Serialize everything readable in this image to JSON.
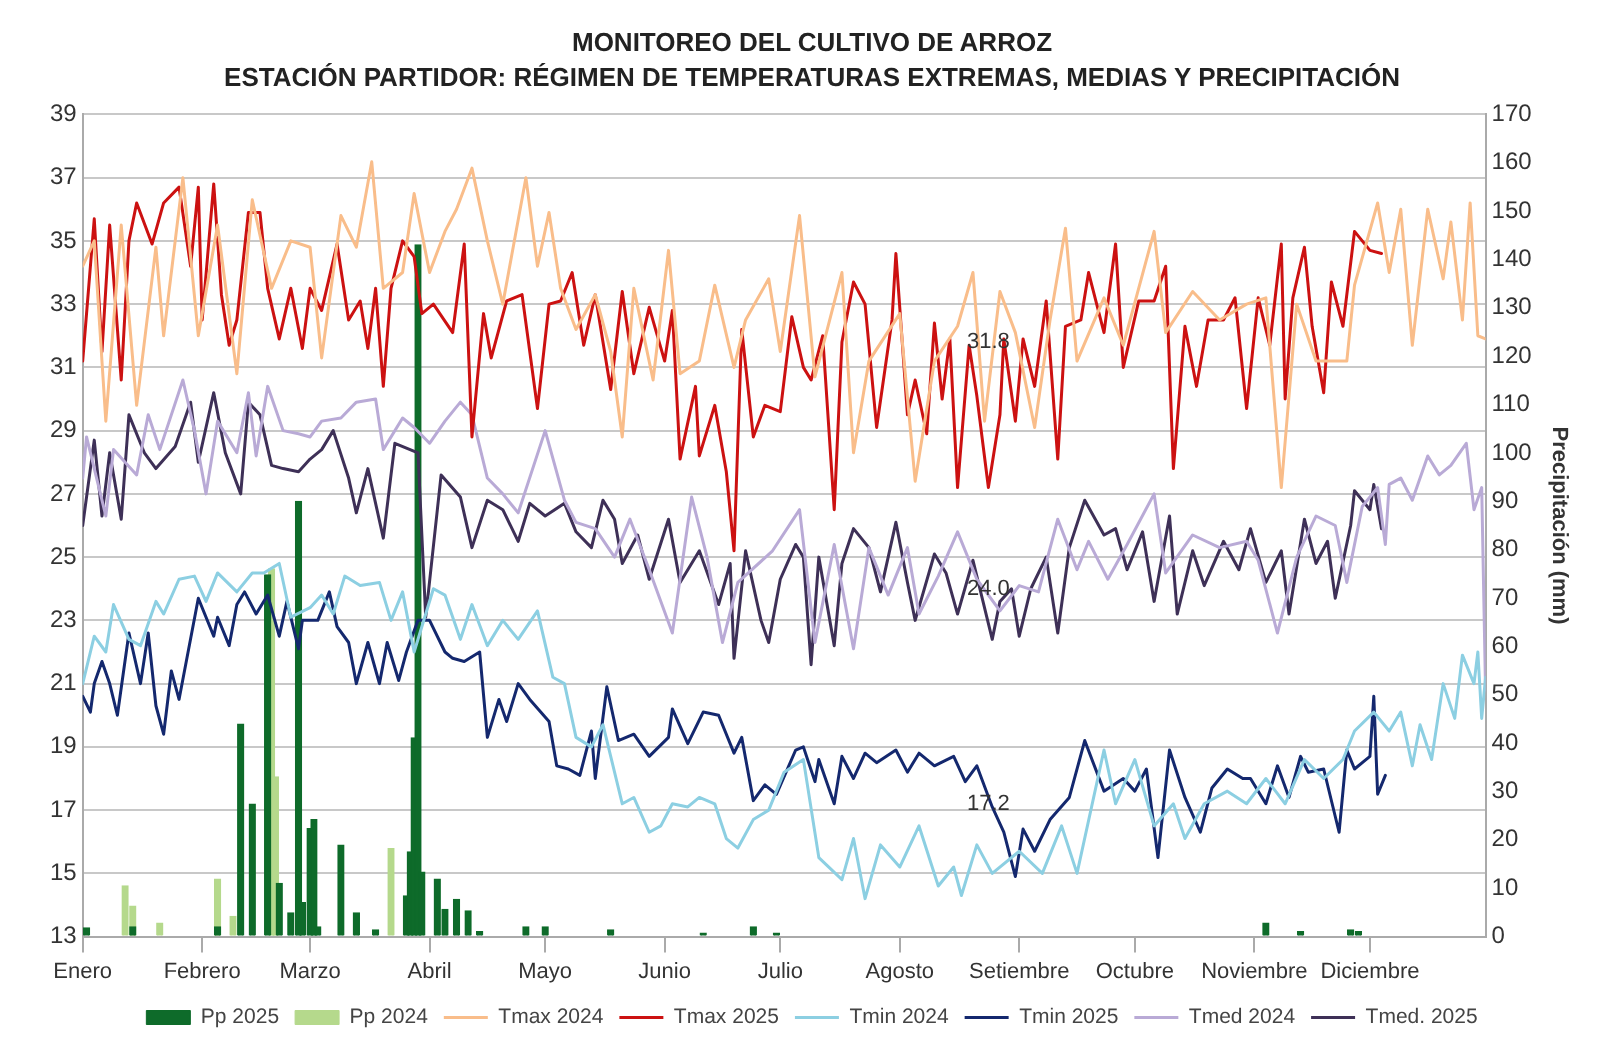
{
  "chart_data": {
    "type": "line",
    "title": "MONITOREO DEL CULTIVO DE ARROZ",
    "subtitle": "ESTACIÓN PARTIDOR: RÉGIMEN DE TEMPERATURAS EXTREMAS, MEDIAS Y PRECIPITACIÓN",
    "y2label": "Precipitación (mm)",
    "xlim": [
      "--01-01",
      "--12-31"
    ],
    "xticks": [
      {
        "value": "--01-01",
        "label": "Enero"
      },
      {
        "value": "--02-01",
        "label": "Febrero"
      },
      {
        "value": "--03-01",
        "label": "Marzo"
      },
      {
        "value": "--04-01",
        "label": "Abril"
      },
      {
        "value": "--05-01",
        "label": "Mayo"
      },
      {
        "value": "--06-01",
        "label": "Junio"
      },
      {
        "value": "--07-01",
        "label": "Julio"
      },
      {
        "value": "--08-01",
        "label": "Agosto"
      },
      {
        "value": "--09-01",
        "label": "Setiembre"
      },
      {
        "value": "--10-01",
        "label": "Octubre"
      },
      {
        "value": "--11-01",
        "label": "Noviembre"
      },
      {
        "value": "--12-01",
        "label": "Diciembre"
      }
    ],
    "ylim": [
      13,
      39
    ],
    "yticks": [
      13,
      15,
      17,
      19,
      21,
      23,
      25,
      27,
      29,
      31,
      33,
      35,
      37,
      39
    ],
    "y2lim": [
      0,
      170
    ],
    "y2ticks": [
      0,
      10,
      20,
      30,
      40,
      50,
      60,
      70,
      80,
      90,
      100,
      110,
      120,
      130,
      140,
      150,
      160,
      170
    ],
    "grid": "y",
    "legend": "bottom",
    "marker": "none",
    "line_style": "solid",
    "annotations": [
      {
        "text": "31.8",
        "x": "--08-24",
        "y": 31.8
      },
      {
        "text": "24.0",
        "x": "--08-24",
        "y": 24.0
      },
      {
        "text": "17.2",
        "x": "--08-24",
        "y": 17.2
      }
    ],
    "series": [
      {
        "name": "Pp 2025",
        "type": "bar",
        "axis": "y2",
        "color": "#0e6b2a",
        "x": [
          "--01-02",
          "--01-14",
          "--02-05",
          "--02-11",
          "--02-14",
          "--02-18",
          "--02-21",
          "--02-24",
          "--02-26",
          "--02-27",
          "--03-01",
          "--03-02",
          "--03-03",
          "--03-09",
          "--03-13",
          "--03-18",
          "--03-26",
          "--03-27",
          "--03-28",
          "--03-29",
          "--03-30",
          "--04-03",
          "--04-05",
          "--04-08",
          "--04-11",
          "--04-14",
          "--04-26",
          "--05-01",
          "--05-18",
          "--06-11",
          "--06-24",
          "--06-30",
          "--11-04",
          "--11-13",
          "--11-26",
          "--11-28"
        ],
        "values": [
          1.8,
          2,
          2,
          43.9,
          27.4,
          74.8,
          11,
          4.9,
          90,
          7,
          22.3,
          24.2,
          2,
          18.9,
          4.9,
          1.4,
          8.4,
          17.5,
          41.1,
          143,
          13.3,
          11.9,
          5.6,
          7.7,
          5.3,
          1,
          2,
          2,
          1.4,
          0.7,
          2,
          0.7,
          2.8,
          1,
          1.4,
          1
        ]
      },
      {
        "name": "Pp 2024",
        "type": "bar",
        "axis": "y2",
        "color": "#b5d98c",
        "x": [
          "--01-12",
          "--01-14",
          "--01-21",
          "--02-05",
          "--02-09",
          "--02-19",
          "--02-20",
          "--03-22"
        ],
        "values": [
          10.5,
          6.3,
          2.8,
          11.9,
          4.2,
          76,
          33,
          18.2
        ]
      },
      {
        "name": "Tmax 2024",
        "axis": "y",
        "color": "#f9bd8a",
        "x": [
          "--01-01",
          "--01-04",
          "--01-07",
          "--01-11",
          "--01-15",
          "--01-20",
          "--01-22",
          "--01-27",
          "--01-31",
          "--02-05",
          "--02-10",
          "--02-14",
          "--02-19",
          "--02-24",
          "--03-01",
          "--03-04",
          "--03-09",
          "--03-13",
          "--03-17",
          "--03-20",
          "--03-25",
          "--03-28",
          "--04-01",
          "--04-05",
          "--04-08",
          "--04-12",
          "--04-16",
          "--04-20",
          "--04-26",
          "--04-29",
          "--05-02",
          "--05-05",
          "--05-09",
          "--05-14",
          "--05-18",
          "--05-21",
          "--05-24",
          "--05-29",
          "--06-02",
          "--06-05",
          "--06-10",
          "--06-14",
          "--06-19",
          "--06-22",
          "--06-28",
          "--07-01",
          "--07-06",
          "--07-10",
          "--07-17",
          "--07-20",
          "--07-24",
          "--08-01",
          "--08-05",
          "--08-10",
          "--08-16",
          "--08-20",
          "--08-23",
          "--08-27",
          "--08-31",
          "--09-05",
          "--09-09",
          "--09-13",
          "--09-16",
          "--09-23",
          "--09-28",
          "--10-06",
          "--10-09",
          "--10-16",
          "--10-23",
          "--10-30",
          "--11-04",
          "--11-08",
          "--11-12",
          "--11-17",
          "--11-25",
          "--11-27",
          "--12-03",
          "--12-06",
          "--12-09",
          "--12-12",
          "--12-16",
          "--12-20",
          "--12-22",
          "--12-25",
          "--12-27",
          "--12-29",
          "--12-31"
        ],
        "values": [
          34.2,
          35,
          29.3,
          35.5,
          29.8,
          34.8,
          32,
          37,
          32,
          35.5,
          30.8,
          36.3,
          33.5,
          35,
          34.8,
          31.3,
          35.8,
          34.8,
          37.5,
          33.5,
          34,
          36.5,
          34,
          35.3,
          36,
          37.3,
          35,
          33,
          37,
          34.2,
          35.9,
          33.5,
          32.2,
          33.3,
          31.5,
          28.8,
          33.5,
          30.6,
          34.7,
          30.8,
          31.2,
          33.6,
          31,
          32.5,
          33.8,
          31.5,
          35.8,
          30.7,
          34,
          28.3,
          31.2,
          32.7,
          27.4,
          31.2,
          32.3,
          34,
          29.3,
          33.4,
          32.1,
          29.1,
          32.5,
          35.4,
          31.2,
          33.2,
          31.7,
          35.3,
          32.1,
          33.4,
          32.5,
          33,
          33.2,
          27.2,
          33,
          31.2,
          31.2,
          33.6,
          36.2,
          34,
          36,
          31.7,
          36,
          33.8,
          35.6,
          32.5,
          36.2,
          32,
          31.9
        ]
      },
      {
        "name": "Tmax 2025",
        "axis": "y",
        "color": "#cc1111",
        "x": [
          "--01-01",
          "--01-04",
          "--01-06",
          "--01-08",
          "--01-11",
          "--01-13",
          "--01-15",
          "--01-19",
          "--01-22",
          "--01-26",
          "--01-29",
          "--01-31",
          "--02-01",
          "--02-04",
          "--02-06",
          "--02-08",
          "--02-10",
          "--02-13",
          "--02-16",
          "--02-18",
          "--02-21",
          "--02-24",
          "--02-27",
          "--03-01",
          "--03-04",
          "--03-08",
          "--03-11",
          "--03-14",
          "--03-16",
          "--03-18",
          "--03-20",
          "--03-22",
          "--03-25",
          "--03-28",
          "--03-30",
          "--04-02",
          "--04-07",
          "--04-10",
          "--04-12",
          "--04-15",
          "--04-17",
          "--04-21",
          "--04-25",
          "--04-29",
          "--05-02",
          "--05-05",
          "--05-08",
          "--05-11",
          "--05-14",
          "--05-18",
          "--05-21",
          "--05-24",
          "--05-28",
          "--06-01",
          "--06-03",
          "--06-05",
          "--06-09",
          "--06-10",
          "--06-14",
          "--06-17",
          "--06-19",
          "--06-21",
          "--06-24",
          "--06-27",
          "--07-01",
          "--07-04",
          "--07-07",
          "--07-09",
          "--07-12",
          "--07-15",
          "--07-17",
          "--07-20",
          "--07-23",
          "--07-26",
          "--07-30",
          "--07-31",
          "--08-03",
          "--08-05",
          "--08-08",
          "--08-10",
          "--08-12",
          "--08-14",
          "--08-16",
          "--08-19",
          "--08-21",
          "--08-24",
          "--08-27",
          "--08-28",
          "--08-31",
          "--09-02",
          "--09-05",
          "--09-08",
          "--09-11",
          "--09-13",
          "--09-17",
          "--09-19",
          "--09-23",
          "--09-26",
          "--09-28",
          "--10-02",
          "--10-06",
          "--10-09",
          "--10-11",
          "--10-14",
          "--10-17",
          "--10-20",
          "--10-24",
          "--10-27",
          "--10-30",
          "--11-02",
          "--11-05",
          "--11-08",
          "--11-09",
          "--11-11",
          "--11-14",
          "--11-16",
          "--11-19",
          "--11-21",
          "--11-24",
          "--11-27",
          "--12-01",
          "--12-04"
        ],
        "values": [
          31.2,
          35.7,
          31.5,
          35.5,
          30.6,
          35,
          36.2,
          34.9,
          36.2,
          36.7,
          34.2,
          36.7,
          32.5,
          36.8,
          33.3,
          31.7,
          32.5,
          35.9,
          35.9,
          33.5,
          31.9,
          33.5,
          31.6,
          33.5,
          32.8,
          34.9,
          32.5,
          33.1,
          31.6,
          33.5,
          30.4,
          33.5,
          35,
          34.5,
          32.7,
          33,
          32.1,
          34.9,
          28.8,
          32.7,
          31.3,
          33.1,
          33.3,
          29.7,
          33,
          33.1,
          34,
          31.7,
          33.3,
          30.3,
          33.4,
          30.8,
          32.9,
          31.2,
          32.8,
          28.1,
          30.4,
          28.2,
          29.8,
          27.7,
          25.2,
          32.2,
          28.8,
          29.8,
          29.6,
          32.6,
          31,
          30.6,
          32,
          26.5,
          31.8,
          33.7,
          33,
          29.1,
          32.5,
          34.6,
          29.5,
          30.6,
          28.9,
          32.4,
          30,
          31.9,
          27.2,
          31.7,
          30.1,
          27.2,
          29.5,
          31.9,
          29.3,
          31.9,
          30.4,
          33.1,
          28.1,
          32.3,
          32.5,
          34,
          32.1,
          34.9,
          31,
          33.1,
          33.1,
          34.2,
          27.8,
          32.3,
          30.4,
          32.5,
          32.5,
          33.2,
          29.7,
          33.2,
          31.7,
          34.9,
          30,
          33.2,
          34.8,
          32.3,
          30.2,
          33.7,
          32.3,
          35.3,
          34.7,
          34.6
        ]
      },
      {
        "name": "Tmin 2024",
        "axis": "y",
        "color": "#8ccfe2",
        "x": [
          "--01-01",
          "--01-04",
          "--01-07",
          "--01-09",
          "--01-13",
          "--01-16",
          "--01-20",
          "--01-22",
          "--01-26",
          "--01-30",
          "--02-02",
          "--02-05",
          "--02-10",
          "--02-14",
          "--02-17",
          "--02-21",
          "--02-24",
          "--03-01",
          "--03-04",
          "--03-07",
          "--03-10",
          "--03-14",
          "--03-19",
          "--03-22",
          "--03-25",
          "--03-28",
          "--04-02",
          "--04-05",
          "--04-09",
          "--04-12",
          "--04-16",
          "--04-20",
          "--04-24",
          "--04-29",
          "--05-03",
          "--05-06",
          "--05-09",
          "--05-13",
          "--05-16",
          "--05-21",
          "--05-24",
          "--05-28",
          "--05-31",
          "--06-03",
          "--06-07",
          "--06-10",
          "--06-14",
          "--06-17",
          "--06-20",
          "--06-24",
          "--06-28",
          "--07-02",
          "--07-07",
          "--07-11",
          "--07-17",
          "--07-20",
          "--07-23",
          "--07-27",
          "--08-01",
          "--08-06",
          "--08-11",
          "--08-15",
          "--08-17",
          "--08-21",
          "--08-25",
          "--09-01",
          "--09-07",
          "--09-12",
          "--09-16",
          "--09-23",
          "--09-26",
          "--10-01",
          "--10-06",
          "--10-11",
          "--10-14",
          "--10-19",
          "--10-25",
          "--10-30",
          "--11-04",
          "--11-09",
          "--11-14",
          "--11-19",
          "--11-24",
          "--11-27",
          "--12-02",
          "--12-06",
          "--12-09",
          "--12-12",
          "--12-14",
          "--12-17",
          "--12-20",
          "--12-23",
          "--12-25",
          "--12-28",
          "--12-29",
          "--12-30",
          "--12-31"
        ],
        "values": [
          21,
          22.5,
          22,
          23.5,
          22.4,
          22.2,
          23.6,
          23.2,
          24.3,
          24.4,
          23.6,
          24.5,
          23.9,
          24.5,
          24.5,
          24.8,
          23.1,
          23.4,
          23.8,
          23.2,
          24.4,
          24.1,
          24.2,
          23,
          23.9,
          22,
          24,
          23.8,
          22.4,
          23.5,
          22.2,
          23,
          22.4,
          23.3,
          21.2,
          21,
          19.3,
          19,
          19.7,
          17.2,
          17.4,
          16.3,
          16.5,
          17.2,
          17.1,
          17.4,
          17.2,
          16.1,
          15.8,
          16.7,
          17,
          18.2,
          18.6,
          15.5,
          14.8,
          16.1,
          14.2,
          15.9,
          15.2,
          16.5,
          14.6,
          15.2,
          14.3,
          15.9,
          15,
          15.7,
          15,
          16.5,
          15,
          18.9,
          17.2,
          18.6,
          16.5,
          17.2,
          16.1,
          17.2,
          17.6,
          17.2,
          18,
          17.2,
          18.6,
          18,
          18.6,
          19.5,
          20.1,
          19.5,
          20.1,
          18.4,
          19.7,
          18.6,
          21,
          19.9,
          21.9,
          21,
          22,
          19.9,
          21.2
        ]
      },
      {
        "name": "Tmin 2025",
        "axis": "y",
        "color": "#14286e",
        "x": [
          "--01-01",
          "--01-03",
          "--01-04",
          "--01-06",
          "--01-08",
          "--01-10",
          "--01-13",
          "--01-16",
          "--01-18",
          "--01-20",
          "--01-22",
          "--01-24",
          "--01-26",
          "--01-31",
          "--02-04",
          "--02-05",
          "--02-08",
          "--02-10",
          "--02-12",
          "--02-15",
          "--02-18",
          "--02-21",
          "--02-23",
          "--02-26",
          "--02-27",
          "--03-03",
          "--03-06",
          "--03-08",
          "--03-11",
          "--03-13",
          "--03-16",
          "--03-19",
          "--03-21",
          "--03-24",
          "--03-26",
          "--03-29",
          "--04-01",
          "--04-05",
          "--04-07",
          "--04-10",
          "--04-14",
          "--04-16",
          "--04-19",
          "--04-21",
          "--04-24",
          "--04-27",
          "--05-02",
          "--05-04",
          "--05-07",
          "--05-10",
          "--05-13",
          "--05-14",
          "--05-17",
          "--05-20",
          "--05-24",
          "--05-28",
          "--06-02",
          "--06-03",
          "--06-07",
          "--06-11",
          "--06-15",
          "--06-19",
          "--06-21",
          "--06-24",
          "--06-27",
          "--06-30",
          "--07-05",
          "--07-07",
          "--07-10",
          "--07-11",
          "--07-15",
          "--07-17",
          "--07-20",
          "--07-23",
          "--07-26",
          "--07-31",
          "--08-03",
          "--08-06",
          "--08-10",
          "--08-15",
          "--08-18",
          "--08-21",
          "--08-25",
          "--08-28",
          "--08-31",
          "--09-02",
          "--09-05",
          "--09-09",
          "--09-14",
          "--09-18",
          "--09-23",
          "--09-28",
          "--10-01",
          "--10-04",
          "--10-07",
          "--10-10",
          "--10-14",
          "--10-18",
          "--10-21",
          "--10-25",
          "--10-29",
          "--10-31",
          "--11-04",
          "--11-07",
          "--11-10",
          "--11-13",
          "--11-15",
          "--11-19",
          "--11-23",
          "--11-25",
          "--11-27",
          "--12-01",
          "--12-02",
          "--12-03",
          "--12-05"
        ],
        "values": [
          20.6,
          20.1,
          21,
          21.7,
          21,
          20,
          22.6,
          21,
          22.6,
          20.3,
          19.4,
          21.4,
          20.5,
          23.7,
          22.5,
          23.1,
          22.2,
          23.5,
          23.9,
          23.2,
          23.8,
          22.5,
          23.6,
          22.1,
          23,
          23,
          23.9,
          22.8,
          22.3,
          21,
          22.3,
          21,
          22.3,
          21.1,
          22,
          23,
          23,
          22,
          21.8,
          21.7,
          22,
          19.3,
          20.5,
          19.8,
          21,
          20.5,
          19.8,
          18.4,
          18.3,
          18.1,
          19.5,
          18,
          20.9,
          19.2,
          19.4,
          18.7,
          19.3,
          20.2,
          19.1,
          20.1,
          20,
          18.8,
          19.3,
          17.3,
          17.8,
          17.5,
          18.9,
          19,
          17.9,
          18.6,
          17.2,
          18.7,
          18,
          18.8,
          18.5,
          18.9,
          18.2,
          18.8,
          18.4,
          18.7,
          17.9,
          18.4,
          17.1,
          16.3,
          14.9,
          16.4,
          15.7,
          16.7,
          17.4,
          19.2,
          17.6,
          18,
          17.6,
          18.3,
          15.5,
          18.9,
          17.4,
          16.3,
          17.7,
          18.3,
          18,
          18,
          17.2,
          18.4,
          17.4,
          18.7,
          18.2,
          18.3,
          16.3,
          18.9,
          18.3,
          18.7,
          20.6,
          17.5,
          18.1
        ]
      },
      {
        "name": "Tmed 2024",
        "axis": "y",
        "color": "#b9aad6",
        "x": [
          "--01-01",
          "--01-02",
          "--01-07",
          "--01-09",
          "--01-15",
          "--01-18",
          "--01-21",
          "--01-27",
          "--01-30",
          "--02-02",
          "--02-05",
          "--02-10",
          "--02-13",
          "--02-15",
          "--02-18",
          "--02-22",
          "--02-26",
          "--03-01",
          "--03-04",
          "--03-09",
          "--03-13",
          "--03-18",
          "--03-20",
          "--03-25",
          "--03-28",
          "--04-01",
          "--04-05",
          "--04-09",
          "--04-12",
          "--04-16",
          "--04-20",
          "--04-24",
          "--05-01",
          "--05-06",
          "--05-09",
          "--05-14",
          "--05-19",
          "--05-23",
          "--05-28",
          "--06-03",
          "--06-08",
          "--06-12",
          "--06-16",
          "--06-20",
          "--06-29",
          "--07-06",
          "--07-10",
          "--07-15",
          "--07-20",
          "--07-24",
          "--07-29",
          "--08-03",
          "--08-06",
          "--08-11",
          "--08-16",
          "--08-21",
          "--08-27",
          "--09-01",
          "--09-06",
          "--09-11",
          "--09-16",
          "--09-19",
          "--09-24",
          "--09-29",
          "--10-06",
          "--10-09",
          "--10-16",
          "--10-23",
          "--10-30",
          "--11-02",
          "--11-07",
          "--11-12",
          "--11-17",
          "--11-22",
          "--11-25",
          "--11-29",
          "--12-03",
          "--12-05",
          "--12-06",
          "--12-09",
          "--12-12",
          "--12-16",
          "--12-19",
          "--12-22",
          "--12-26",
          "--12-28",
          "--12-30",
          "--12-31"
        ],
        "values": [
          27.5,
          28.8,
          26.3,
          28.4,
          27.6,
          29.5,
          28.4,
          30.6,
          29,
          27,
          29.3,
          28.3,
          30.2,
          28.2,
          30.4,
          29,
          28.9,
          28.8,
          29.3,
          29.4,
          29.9,
          30,
          28.4,
          29.4,
          29.1,
          28.6,
          29.3,
          29.9,
          29.5,
          27.5,
          27,
          26.4,
          29,
          26.8,
          26.1,
          25.9,
          25,
          26.2,
          24.6,
          22.6,
          26.9,
          25,
          22.3,
          24.2,
          25.2,
          26.5,
          22.3,
          25.4,
          22.1,
          25.3,
          23.8,
          25.3,
          23.2,
          24.4,
          25.8,
          24.3,
          23.3,
          24.1,
          23.9,
          26.2,
          24.6,
          25.5,
          24.3,
          25.4,
          27,
          24.5,
          25.7,
          25.3,
          25.5,
          24.9,
          22.6,
          25,
          26.3,
          26,
          24.2,
          26.6,
          27.2,
          25.4,
          27.3,
          27.5,
          26.8,
          28.2,
          27.6,
          27.9,
          28.6,
          26.5,
          27.2,
          20.8
        ]
      },
      {
        "name": "Tmed. 2025",
        "axis": "y",
        "color": "#3e3057",
        "x": [
          "--01-01",
          "--01-04",
          "--01-06",
          "--01-08",
          "--01-11",
          "--01-13",
          "--01-17",
          "--01-20",
          "--01-25",
          "--01-29",
          "--01-31",
          "--02-04",
          "--02-07",
          "--02-11",
          "--02-13",
          "--02-16",
          "--02-19",
          "--02-22",
          "--02-26",
          "--03-01",
          "--03-04",
          "--03-07",
          "--03-11",
          "--03-13",
          "--03-16",
          "--03-20",
          "--03-23",
          "--03-29",
          "--03-31",
          "--04-04",
          "--04-09",
          "--04-12",
          "--04-16",
          "--04-20",
          "--04-24",
          "--04-27",
          "--05-01",
          "--05-06",
          "--05-09",
          "--05-13",
          "--05-16",
          "--05-19",
          "--05-21",
          "--05-25",
          "--05-28",
          "--06-02",
          "--06-05",
          "--06-10",
          "--06-15",
          "--06-18",
          "--06-19",
          "--06-22",
          "--06-26",
          "--06-28",
          "--07-01",
          "--07-05",
          "--07-07",
          "--07-09",
          "--07-11",
          "--07-15",
          "--07-17",
          "--07-20",
          "--07-24",
          "--07-27",
          "--07-31",
          "--08-03",
          "--08-05",
          "--08-10",
          "--08-13",
          "--08-16",
          "--08-20",
          "--08-25",
          "--08-27",
          "--08-30",
          "--09-01",
          "--09-04",
          "--09-08",
          "--09-11",
          "--09-14",
          "--09-18",
          "--09-23",
          "--09-26",
          "--09-29",
          "--10-03",
          "--10-06",
          "--10-10",
          "--10-12",
          "--10-16",
          "--10-19",
          "--10-24",
          "--10-28",
          "--10-31",
          "--11-04",
          "--11-08",
          "--11-10",
          "--11-14",
          "--11-17",
          "--11-20",
          "--11-22",
          "--11-26",
          "--11-27",
          "--12-01",
          "--12-02",
          "--12-04"
        ],
        "values": [
          26,
          28.7,
          26.3,
          28.3,
          26.2,
          29.5,
          28.3,
          27.8,
          28.5,
          29.9,
          28,
          30.2,
          28.3,
          27,
          29.9,
          29.5,
          27.9,
          27.8,
          27.7,
          28.1,
          28.4,
          29,
          27.5,
          26.4,
          27.8,
          25.6,
          28.6,
          28.3,
          23.1,
          27.6,
          26.9,
          25.3,
          26.8,
          26.5,
          25.5,
          26.7,
          26.3,
          26.7,
          25.8,
          25.3,
          26.8,
          26.2,
          24.8,
          25.7,
          24.3,
          26.2,
          24.2,
          25.2,
          23.5,
          24.8,
          21.8,
          25.2,
          23,
          22.3,
          24.3,
          25.4,
          25,
          21.6,
          25,
          22.2,
          24.8,
          25.9,
          25.3,
          23.9,
          26.1,
          24.2,
          23,
          25.1,
          24.5,
          23.2,
          24.9,
          22.4,
          23.6,
          24,
          22.5,
          24,
          25,
          22.6,
          25.3,
          26.8,
          25.7,
          25.9,
          24.6,
          25.8,
          23.6,
          26.3,
          23.2,
          25.2,
          24.1,
          25.5,
          24.6,
          25.9,
          24.2,
          25.2,
          23.2,
          26.2,
          24.8,
          25.5,
          23.7,
          26,
          27.1,
          26.5,
          27.3,
          25.9
        ]
      }
    ]
  }
}
